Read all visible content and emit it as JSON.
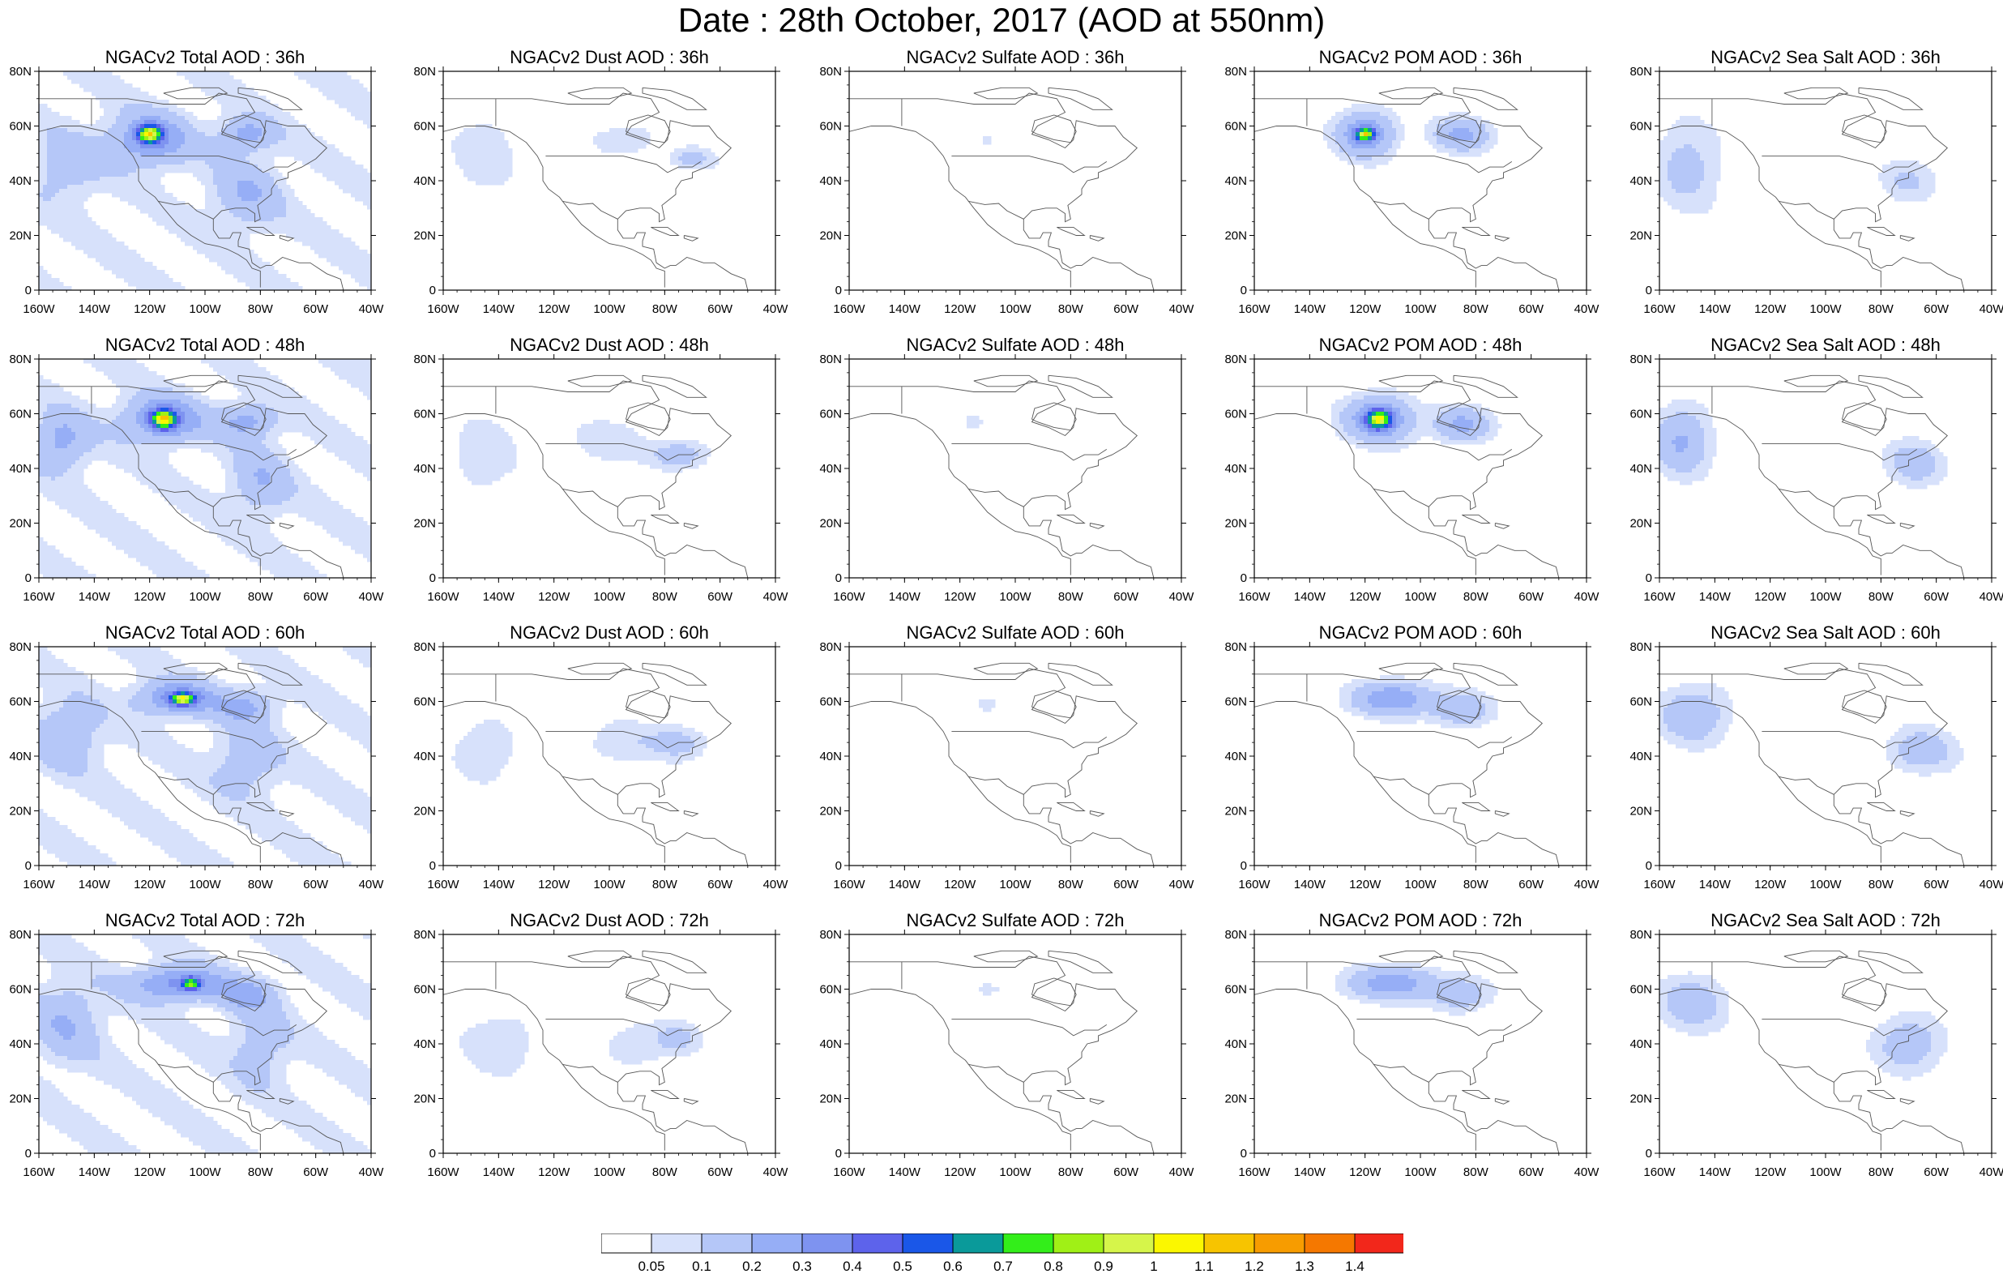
{
  "title": "Date : 28th October, 2017 (AOD at 550nm)",
  "y_ticks": [
    "80N",
    "60N",
    "40N",
    "20N",
    "0"
  ],
  "x_ticks": [
    "160W",
    "140W",
    "120W",
    "100W",
    "80W",
    "60W",
    "40W"
  ],
  "colorbar": {
    "labels": [
      "0.05",
      "0.1",
      "0.2",
      "0.3",
      "0.4",
      "0.5",
      "0.6",
      "0.7",
      "0.8",
      "0.9",
      "1",
      "1.1",
      "1.2",
      "1.3",
      "1.4"
    ],
    "colors": [
      "#ffffff",
      "#d7e1fb",
      "#b5c7f8",
      "#96aef6",
      "#7e93f0",
      "#5d63eb",
      "#1a57e8",
      "#0a9a9a",
      "#33ee1a",
      "#a0f016",
      "#d6f54a",
      "#fbf700",
      "#f7c400",
      "#f79c00",
      "#f57800",
      "#f2271b"
    ]
  },
  "panels": [
    {
      "title": "NGACv2 Total AOD : 36h",
      "species": "total",
      "hour": 36
    },
    {
      "title": "NGACv2 Dust AOD : 36h",
      "species": "dust",
      "hour": 36
    },
    {
      "title": "NGACv2 Sulfate AOD : 36h",
      "species": "sulfate",
      "hour": 36
    },
    {
      "title": "NGACv2 POM AOD : 36h",
      "species": "pom",
      "hour": 36
    },
    {
      "title": "NGACv2 Sea Salt AOD : 36h",
      "species": "seasalt",
      "hour": 36
    },
    {
      "title": "NGACv2 Total AOD : 48h",
      "species": "total",
      "hour": 48
    },
    {
      "title": "NGACv2 Dust AOD : 48h",
      "species": "dust",
      "hour": 48
    },
    {
      "title": "NGACv2 Sulfate AOD : 48h",
      "species": "sulfate",
      "hour": 48
    },
    {
      "title": "NGACv2 POM AOD : 48h",
      "species": "pom",
      "hour": 48
    },
    {
      "title": "NGACv2 Sea Salt AOD : 48h",
      "species": "seasalt",
      "hour": 48
    },
    {
      "title": "NGACv2 Total AOD : 60h",
      "species": "total",
      "hour": 60
    },
    {
      "title": "NGACv2 Dust AOD : 60h",
      "species": "dust",
      "hour": 60
    },
    {
      "title": "NGACv2 Sulfate AOD : 60h",
      "species": "sulfate",
      "hour": 60
    },
    {
      "title": "NGACv2 POM AOD : 60h",
      "species": "pom",
      "hour": 60
    },
    {
      "title": "NGACv2 Sea Salt AOD : 60h",
      "species": "seasalt",
      "hour": 60
    },
    {
      "title": "NGACv2 Total AOD : 72h",
      "species": "total",
      "hour": 72
    },
    {
      "title": "NGACv2 Dust AOD : 72h",
      "species": "dust",
      "hour": 72
    },
    {
      "title": "NGACv2 Sulfate AOD : 72h",
      "species": "sulfate",
      "hour": 72
    },
    {
      "title": "NGACv2 POM AOD : 72h",
      "species": "pom",
      "hour": 72
    },
    {
      "title": "NGACv2 Sea Salt  AOD : 72h",
      "species": "seasalt",
      "hour": 72
    }
  ],
  "chart_data": {
    "type": "heatmap",
    "lon_range": [
      -160,
      -40
    ],
    "lat_range": [
      0,
      80
    ],
    "quantity": "AOD at 550nm",
    "plumes": {
      "total": [
        [
          [
            -120,
            55,
            14,
            9,
            0.28
          ],
          [
            -85,
            57,
            10,
            6,
            0.2
          ],
          [
            -150,
            45,
            12,
            12,
            0.12
          ],
          [
            -85,
            35,
            12,
            12,
            0.15
          ],
          [
            -120,
            57,
            4,
            3,
            0.8
          ]
        ],
        [
          [
            -115,
            58,
            14,
            8,
            0.3
          ],
          [
            -85,
            57,
            10,
            6,
            0.2
          ],
          [
            -152,
            50,
            10,
            10,
            0.2
          ],
          [
            -80,
            35,
            10,
            12,
            0.15
          ],
          [
            -115,
            58,
            4,
            3,
            0.85
          ]
        ],
        [
          [
            -110,
            61,
            14,
            6,
            0.3
          ],
          [
            -85,
            58,
            10,
            6,
            0.18
          ],
          [
            -150,
            48,
            12,
            12,
            0.15
          ],
          [
            -85,
            38,
            12,
            12,
            0.12
          ],
          [
            -108,
            61,
            4,
            2,
            0.75
          ]
        ],
        [
          [
            -110,
            62,
            16,
            6,
            0.3
          ],
          [
            -85,
            58,
            10,
            6,
            0.18
          ],
          [
            -150,
            48,
            12,
            14,
            0.15
          ],
          [
            -80,
            40,
            10,
            14,
            0.12
          ],
          [
            -105,
            62,
            3,
            2,
            0.6
          ]
        ]
      ],
      "dust": [
        [
          [
            -145,
            50,
            12,
            14,
            0.08
          ],
          [
            -95,
            55,
            12,
            6,
            0.08
          ],
          [
            -70,
            48,
            8,
            4,
            0.12
          ]
        ],
        [
          [
            -145,
            45,
            12,
            14,
            0.08
          ],
          [
            -100,
            50,
            14,
            8,
            0.08
          ],
          [
            -75,
            45,
            10,
            5,
            0.15
          ]
        ],
        [
          [
            -145,
            42,
            12,
            12,
            0.08
          ],
          [
            -95,
            45,
            14,
            8,
            0.08
          ],
          [
            -75,
            45,
            10,
            6,
            0.12
          ]
        ],
        [
          [
            -140,
            40,
            14,
            12,
            0.08
          ],
          [
            -90,
            40,
            12,
            8,
            0.08
          ],
          [
            -75,
            42,
            8,
            6,
            0.1
          ]
        ]
      ],
      "sulfate": [
        [
          [
            -110,
            55,
            3,
            2,
            0.07
          ]
        ],
        [
          [
            -115,
            57,
            4,
            3,
            0.08
          ]
        ],
        [
          [
            -110,
            59,
            5,
            3,
            0.08
          ]
        ],
        [
          [
            -110,
            60,
            6,
            3,
            0.07
          ]
        ]
      ],
      "pom": [
        [
          [
            -120,
            57,
            10,
            8,
            0.3
          ],
          [
            -85,
            57,
            10,
            6,
            0.22
          ],
          [
            -120,
            57,
            3,
            2,
            0.8
          ]
        ],
        [
          [
            -115,
            58,
            12,
            8,
            0.32
          ],
          [
            -85,
            56,
            10,
            6,
            0.22
          ],
          [
            -115,
            58,
            4,
            3,
            0.75
          ]
        ],
        [
          [
            -110,
            61,
            14,
            6,
            0.28
          ],
          [
            -85,
            57,
            10,
            6,
            0.18
          ]
        ],
        [
          [
            -110,
            62,
            16,
            6,
            0.25
          ],
          [
            -85,
            58,
            10,
            6,
            0.15
          ]
        ]
      ],
      "seasalt": [
        [
          [
            -150,
            45,
            12,
            16,
            0.12
          ],
          [
            -70,
            40,
            10,
            8,
            0.1
          ]
        ],
        [
          [
            -152,
            50,
            10,
            12,
            0.2
          ],
          [
            -68,
            42,
            10,
            8,
            0.15
          ]
        ],
        [
          [
            -148,
            55,
            12,
            10,
            0.18
          ],
          [
            -65,
            42,
            12,
            8,
            0.15
          ]
        ],
        [
          [
            -148,
            55,
            12,
            10,
            0.15
          ],
          [
            -70,
            40,
            12,
            10,
            0.15
          ]
        ]
      ]
    }
  }
}
